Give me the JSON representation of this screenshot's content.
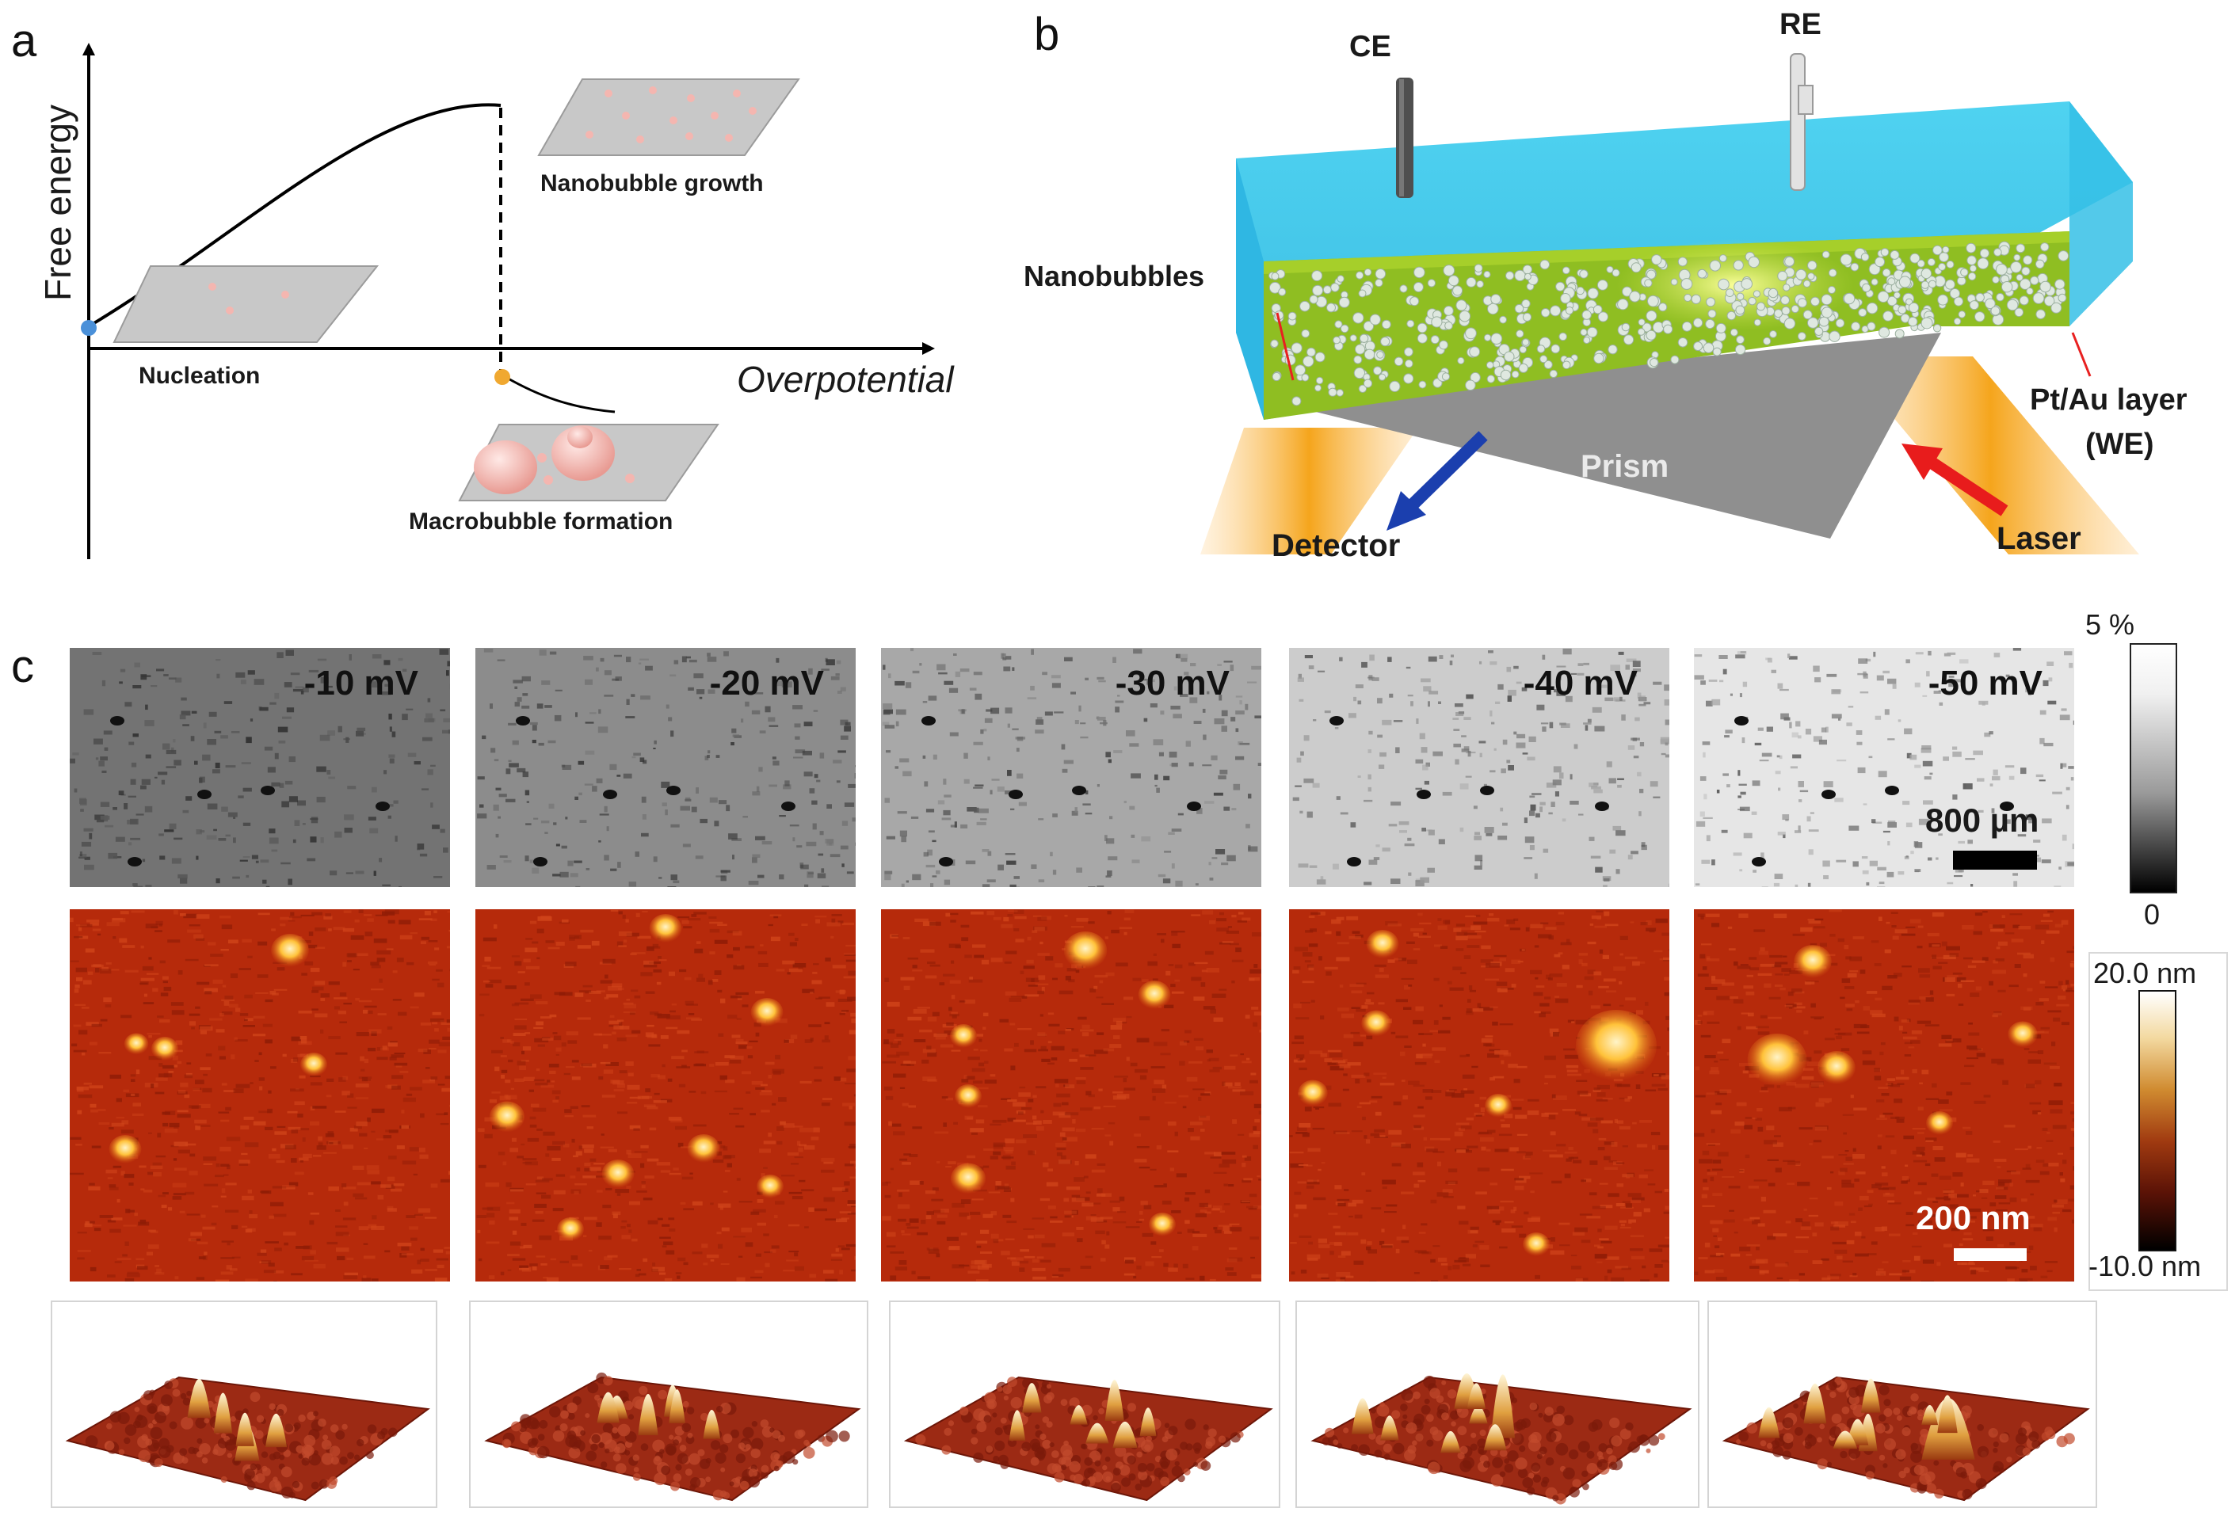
{
  "panel_a": {
    "letter": "a",
    "y_axis_label": "Free energy",
    "x_axis_label": "Overpotential",
    "stage_nucleation": "Nucleation",
    "stage_growth": "Nanobubble growth",
    "stage_macro": "Macrobubble formation",
    "colors": {
      "nucleation_point": "#4a90d9",
      "macro_point": "#f0a830",
      "plate": "#c8c8c8",
      "bubble": "#f4b6b0"
    }
  },
  "panel_b": {
    "letter": "b",
    "ce_label": "CE",
    "re_label": "RE",
    "nanobubbles_label": "Nanobubbles",
    "layer_label_line1": "Pt/Au layer",
    "layer_label_line2": "(WE)",
    "prism_label": "Prism",
    "detector_label": "Detector",
    "laser_label": "Laser",
    "colors": {
      "electrolyte": "#38c7ea",
      "surface": "#8bb820",
      "prism": "#8c8c8c",
      "beam": "#f5a51c",
      "detector_arrow": "#1b3fae",
      "laser_arrow": "#e81c1c"
    }
  },
  "panel_c": {
    "letter": "c",
    "potentials": [
      "-10 mV",
      "-20 mV",
      "-30 mV",
      "-40 mV",
      "-50 mV"
    ],
    "spr_scale_label": "800 µm",
    "afm_scale_label": "200 nm",
    "spr_colorbar_max": "5 %",
    "spr_colorbar_min": "0",
    "afm_colorbar_max": "20.0 nm",
    "afm_colorbar_min": "-10.0 nm",
    "colors": {
      "afm_base": "#b8280a",
      "afm_peak": "#ffe7a0"
    }
  }
}
